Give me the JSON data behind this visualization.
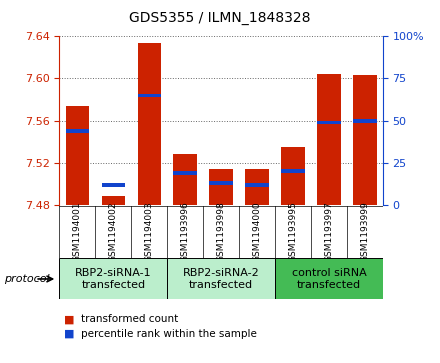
{
  "title": "GDS5355 / ILMN_1848328",
  "samples": [
    "GSM1194001",
    "GSM1194002",
    "GSM1194003",
    "GSM1193996",
    "GSM1193998",
    "GSM1194000",
    "GSM1193995",
    "GSM1193997",
    "GSM1193999"
  ],
  "red_values": [
    7.574,
    7.489,
    7.634,
    7.528,
    7.514,
    7.514,
    7.535,
    7.604,
    7.603
  ],
  "blue_values": [
    44,
    12,
    65,
    19,
    13,
    12,
    20,
    49,
    50
  ],
  "ylim_left": [
    7.48,
    7.64
  ],
  "ylim_right": [
    0,
    100
  ],
  "yticks_left": [
    7.48,
    7.52,
    7.56,
    7.6,
    7.64
  ],
  "yticks_right": [
    0,
    25,
    50,
    75,
    100
  ],
  "ytick_right_labels": [
    "0",
    "25",
    "50",
    "75",
    "100%"
  ],
  "group_labels": [
    "RBP2-siRNA-1\ntransfected",
    "RBP2-siRNA-2\ntransfected",
    "control siRNA\ntransfected"
  ],
  "group_ranges": [
    [
      0,
      3
    ],
    [
      3,
      6
    ],
    [
      6,
      9
    ]
  ],
  "group_colors": [
    "#bbeecc",
    "#bbeecc",
    "#44bb55"
  ],
  "bar_width": 0.65,
  "red_color": "#cc2200",
  "blue_color": "#1144cc",
  "baseline": 7.48,
  "legend_red": "transformed count",
  "legend_blue": "percentile rank within the sample",
  "protocol_label": "protocol",
  "bg_xtick": "#cccccc",
  "grid_color": "#666666",
  "title_fontsize": 10,
  "ytick_fontsize": 8,
  "sample_fontsize": 6.5,
  "group_fontsize": 8,
  "legend_fontsize": 7.5
}
